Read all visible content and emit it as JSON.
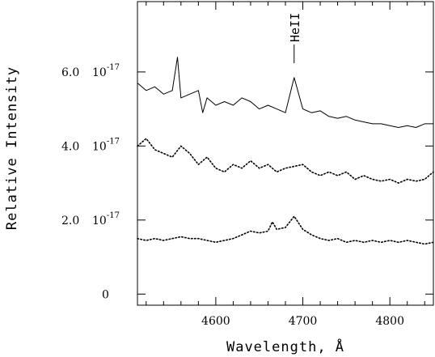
{
  "chart_data": {
    "type": "line",
    "xlabel": "Wavelength, Å",
    "ylabel": "Relative Intensity",
    "xlim": [
      4510,
      4850
    ],
    "ylim": [
      -3e-18,
      7.9e-17
    ],
    "xticks": [
      4600,
      4700,
      4800
    ],
    "xtick_labels": [
      "4600",
      "4700",
      "4800"
    ],
    "yticks": [
      0,
      2e-17,
      4e-17,
      6e-17
    ],
    "ytick_labels": [
      {
        "mantissa": "0",
        "power": ""
      },
      {
        "mantissa": "2.0",
        "power": "10",
        "exponent": "-17"
      },
      {
        "mantissa": "4.0",
        "power": "10",
        "exponent": "-17"
      },
      {
        "mantissa": "6.0",
        "power": "10",
        "exponent": "-17"
      }
    ],
    "grid": false,
    "annotations": [
      {
        "text": "HeII",
        "x": 4690
      }
    ],
    "series": [
      {
        "style": "solid",
        "x": [
          4510,
          4520,
          4530,
          4540,
          4550,
          4556,
          4560,
          4570,
          4580,
          4585,
          4590,
          4600,
          4610,
          4620,
          4630,
          4640,
          4650,
          4660,
          4670,
          4680,
          4690,
          4700,
          4710,
          4720,
          4730,
          4740,
          4750,
          4760,
          4770,
          4780,
          4790,
          4800,
          4810,
          4820,
          4830,
          4840,
          4850
        ],
        "y": [
          5.7e-17,
          5.5e-17,
          5.6e-17,
          5.4e-17,
          5.5e-17,
          6.4e-17,
          5.3e-17,
          5.4e-17,
          5.5e-17,
          4.9e-17,
          5.3e-17,
          5.1e-17,
          5.2e-17,
          5.1e-17,
          5.3e-17,
          5.2e-17,
          5e-17,
          5.1e-17,
          5e-17,
          4.9e-17,
          5.85e-17,
          5e-17,
          4.9e-17,
          4.95e-17,
          4.8e-17,
          4.75e-17,
          4.8e-17,
          4.7e-17,
          4.65e-17,
          4.6e-17,
          4.6e-17,
          4.55e-17,
          4.5e-17,
          4.55e-17,
          4.5e-17,
          4.6e-17,
          4.6e-17
        ]
      },
      {
        "style": "dotted",
        "x": [
          4510,
          4520,
          4530,
          4540,
          4550,
          4560,
          4570,
          4580,
          4590,
          4600,
          4610,
          4620,
          4630,
          4640,
          4650,
          4660,
          4670,
          4680,
          4690,
          4700,
          4710,
          4720,
          4730,
          4740,
          4750,
          4760,
          4770,
          4780,
          4790,
          4800,
          4810,
          4820,
          4830,
          4840,
          4850
        ],
        "y": [
          4e-17,
          4.2e-17,
          3.9e-17,
          3.8e-17,
          3.7e-17,
          4e-17,
          3.8e-17,
          3.5e-17,
          3.7e-17,
          3.4e-17,
          3.3e-17,
          3.5e-17,
          3.4e-17,
          3.6e-17,
          3.4e-17,
          3.5e-17,
          3.3e-17,
          3.4e-17,
          3.45e-17,
          3.5e-17,
          3.3e-17,
          3.2e-17,
          3.3e-17,
          3.2e-17,
          3.3e-17,
          3.1e-17,
          3.2e-17,
          3.1e-17,
          3.05e-17,
          3.1e-17,
          3e-17,
          3.1e-17,
          3.05e-17,
          3.1e-17,
          3.3e-17
        ]
      },
      {
        "style": "dotted",
        "x": [
          4510,
          4520,
          4530,
          4540,
          4550,
          4560,
          4570,
          4580,
          4590,
          4600,
          4610,
          4620,
          4630,
          4640,
          4650,
          4660,
          4665,
          4670,
          4680,
          4690,
          4700,
          4710,
          4720,
          4730,
          4740,
          4750,
          4760,
          4770,
          4780,
          4790,
          4800,
          4810,
          4820,
          4830,
          4840,
          4850
        ],
        "y": [
          1.5e-17,
          1.45e-17,
          1.5e-17,
          1.45e-17,
          1.5e-17,
          1.55e-17,
          1.5e-17,
          1.5e-17,
          1.45e-17,
          1.4e-17,
          1.45e-17,
          1.5e-17,
          1.6e-17,
          1.7e-17,
          1.65e-17,
          1.7e-17,
          1.95e-17,
          1.75e-17,
          1.8e-17,
          2.1e-17,
          1.75e-17,
          1.6e-17,
          1.5e-17,
          1.45e-17,
          1.5e-17,
          1.4e-17,
          1.45e-17,
          1.4e-17,
          1.45e-17,
          1.4e-17,
          1.45e-17,
          1.4e-17,
          1.45e-17,
          1.4e-17,
          1.35e-17,
          1.4e-17
        ]
      }
    ]
  }
}
